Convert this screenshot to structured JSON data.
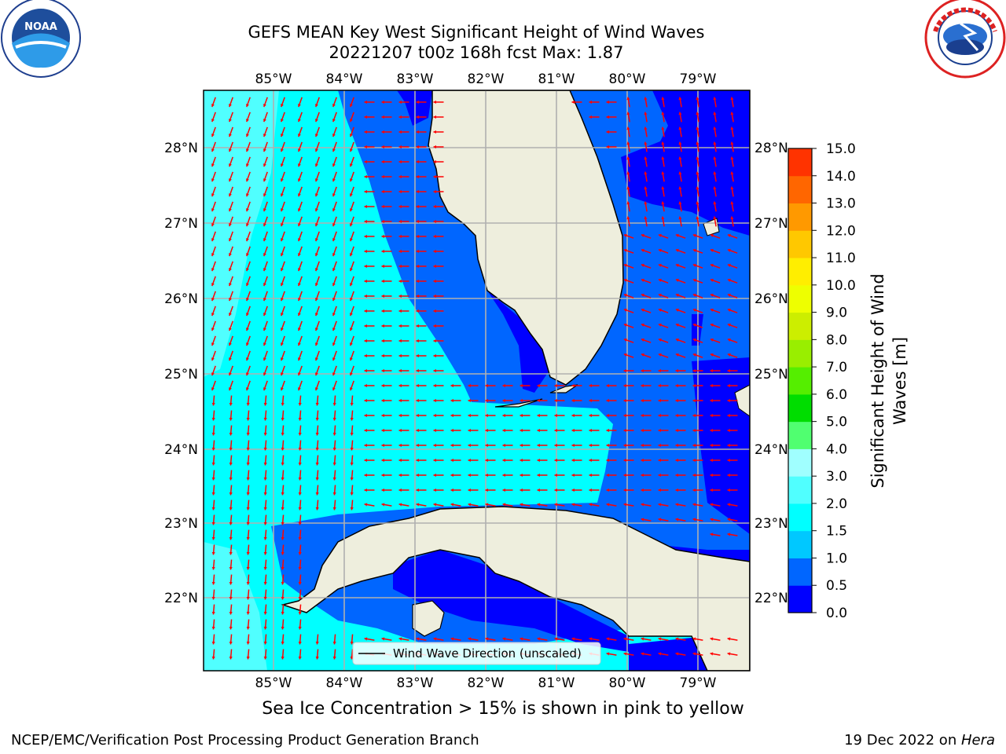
{
  "title": {
    "line1": "GEFS MEAN Key West Significant Height of Wind Waves",
    "line2": "20221207 t00z 168h fcst   Max: 1.87"
  },
  "map": {
    "lon_ticks": [
      "85°W",
      "84°W",
      "83°W",
      "82°W",
      "81°W",
      "80°W",
      "79°W"
    ],
    "lat_ticks": [
      "28°N",
      "27°N",
      "26°N",
      "25°N",
      "24°N",
      "23°N",
      "22°N"
    ],
    "legend_label": "Wind Wave Direction (unscaled)",
    "arrow_color": "#ff0000",
    "land_color": "#eeeedd"
  },
  "colorbar": {
    "label": "Significant Height of Wind Waves [m]",
    "ticks": [
      "0.0",
      "0.5",
      "1.0",
      "1.5",
      "2.0",
      "3.0",
      "4.0",
      "5.0",
      "6.0",
      "7.0",
      "8.0",
      "9.0",
      "10.0",
      "11.0",
      "12.0",
      "13.0",
      "14.0",
      "15.0"
    ],
    "colors": [
      "#0000ff",
      "#0066ff",
      "#00c8ff",
      "#00ffff",
      "#50ffff",
      "#a0ffff",
      "#50ff70",
      "#00dd00",
      "#55ee00",
      "#99ee00",
      "#ccee00",
      "#eeff00",
      "#ffee00",
      "#ffc800",
      "#ff9900",
      "#ff6600",
      "#ff3300",
      "#ff0000"
    ]
  },
  "logos": {
    "left_text": "NOAA",
    "right_text": "NATIONAL WEATHER SERVICE"
  },
  "footer": {
    "sea_ice_note": "Sea Ice Concentration > 15% is shown in pink to yellow",
    "credit": "NCEP/EMC/Verification Post Processing Product Generation Branch",
    "date_prefix": "19 Dec 2022 on ",
    "date_machine": "Hera"
  }
}
